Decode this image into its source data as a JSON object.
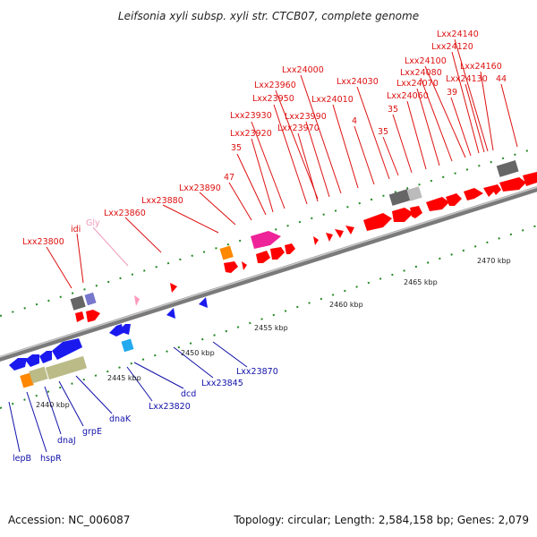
{
  "title": "Leifsonia xyli subsp. xyli str. CTCB07, complete genome",
  "footer": {
    "accession": "Accession: NC_006087",
    "summary": "Topology: circular; Length: 2,584,158 bp; Genes: 2,079"
  },
  "colors": {
    "label_forward": "#dd1111",
    "label_reverse": "#1111aa",
    "label_trna": "#ee99bb",
    "gene_forward": "#ff0000",
    "gene_reverse": "#1a1aee",
    "ticks": "#228822"
  },
  "kbp_ticks": [
    "2440 kbp",
    "2445 kbp",
    "2450 kbp",
    "2455 kbp",
    "2460 kbp",
    "2465 kbp",
    "2470 kbp"
  ],
  "upper_labels": [
    "Lxx23800",
    "idi",
    "Gly",
    "Lxx23860",
    "Lxx23880",
    "Lxx23890",
    "47",
    "35",
    "Lxx23920",
    "Lxx23930",
    "Lxx23970",
    "Lxx23950",
    "Lxx23990",
    "Lxx23960",
    "Lxx24000",
    "Lxx24010",
    "4",
    "Lxx24030",
    "35",
    "35",
    "Lxx24060",
    "Lxx24070",
    "Lxx24080",
    "Lxx24100",
    "39",
    "Lxx24120",
    "Lxx24130",
    "Lxx24140",
    "Lxx24160",
    "44"
  ],
  "lower_labels": [
    "lepB",
    "hspR",
    "dnaJ",
    "grpE",
    "dnaK",
    "Lxx23820",
    "dcd",
    "Lxx23845",
    "Lxx23870"
  ]
}
